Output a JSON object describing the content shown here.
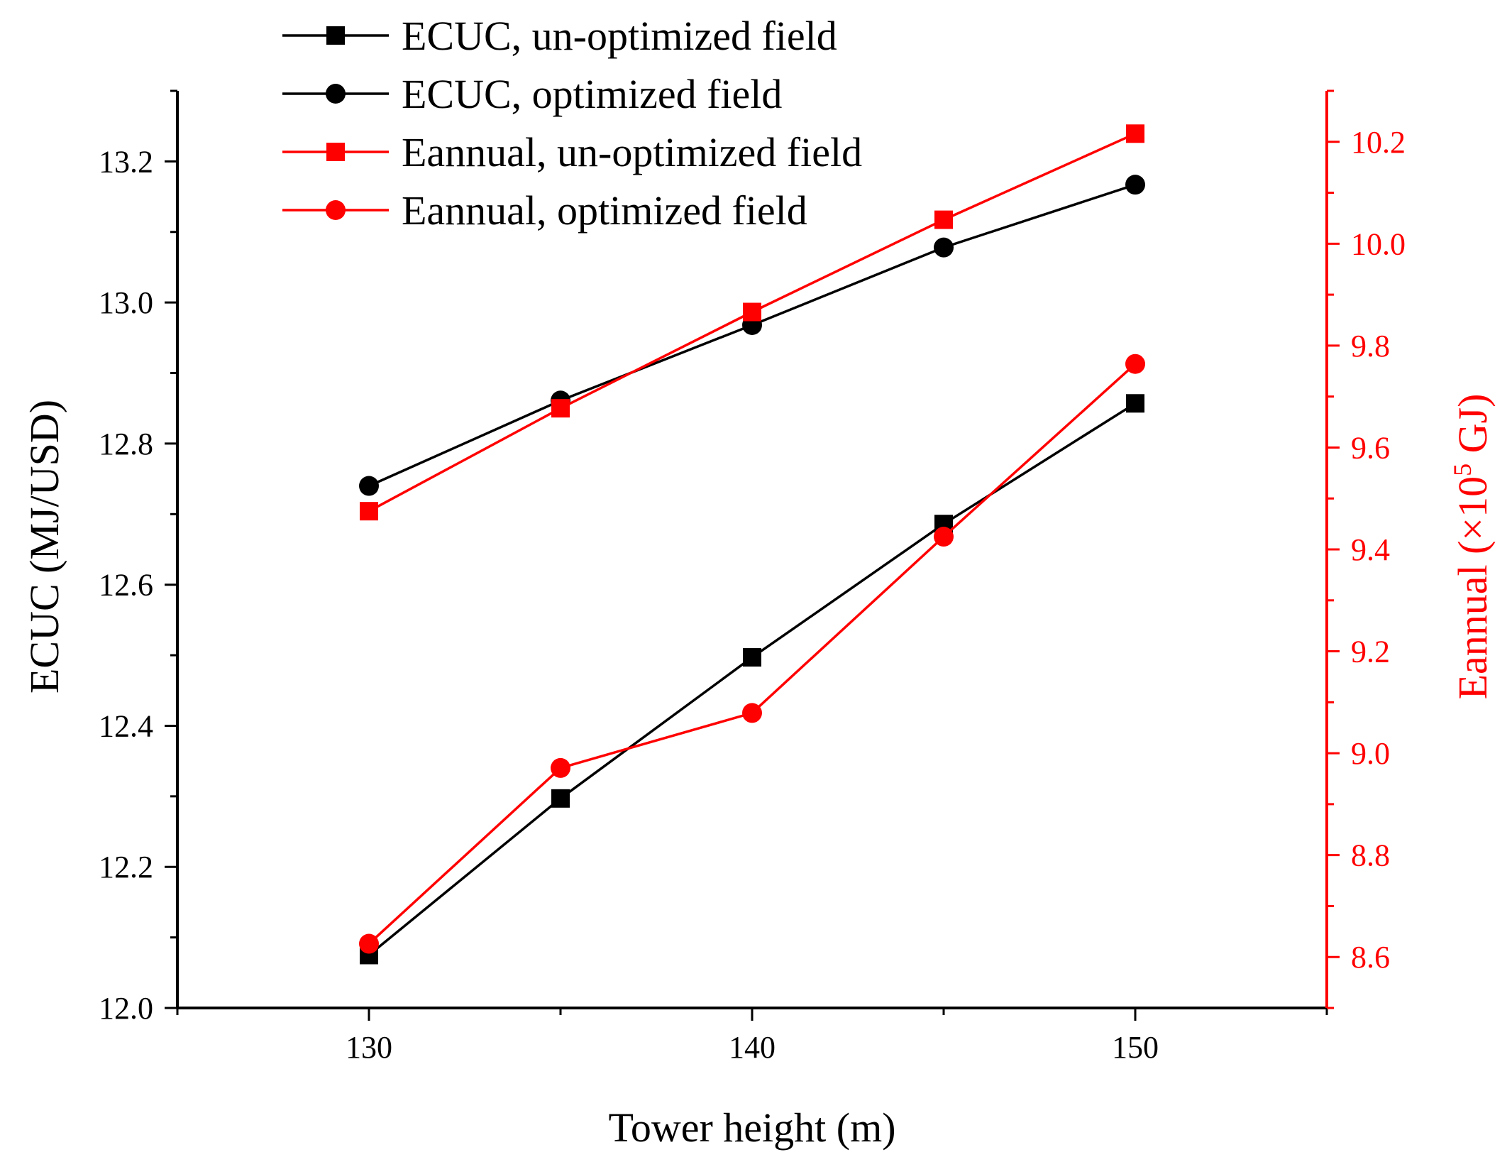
{
  "chart_data": {
    "type": "line",
    "xlabel": "Tower height (m)",
    "ylabel_left": "ECUC (MJ/USD)",
    "ylabel_right_prefix": "Eannual (×10",
    "ylabel_right_exp": "5",
    "ylabel_right_suffix": " GJ)",
    "xlim": [
      125,
      155
    ],
    "ylim_left": [
      12.0,
      13.3
    ],
    "ylim_right": [
      8.5,
      10.3
    ],
    "x_ticks": [
      "130",
      "140",
      "150"
    ],
    "y_left_ticks": [
      "12.0",
      "12.2",
      "12.4",
      "12.6",
      "12.8",
      "13.0",
      "13.2"
    ],
    "y_right_ticks": [
      "8.6",
      "8.8",
      "9.0",
      "9.2",
      "9.4",
      "9.6",
      "9.8",
      "10.0",
      "10.2"
    ],
    "colors": {
      "black": "#000000",
      "red": "#ff0000"
    },
    "x": [
      130,
      135,
      140,
      145,
      150
    ],
    "series": [
      {
        "name": "ECUC, un-optimized field",
        "axis": "left",
        "color": "#000000",
        "marker": "square",
        "values": [
          12.075,
          12.297,
          12.497,
          12.686,
          12.857
        ]
      },
      {
        "name": "ECUC, optimized field",
        "axis": "left",
        "color": "#000000",
        "marker": "circle",
        "values": [
          12.74,
          12.861,
          12.968,
          13.078,
          13.167
        ]
      },
      {
        "name": "Eannual, un-optimized field",
        "axis": "right",
        "color": "#ff0000",
        "marker": "square",
        "values": [
          9.475,
          9.677,
          9.866,
          10.047,
          10.216
        ]
      },
      {
        "name": "Eannual, optimized field",
        "axis": "right",
        "color": "#ff0000",
        "marker": "circle",
        "values": [
          8.626,
          8.971,
          9.079,
          9.425,
          9.764
        ]
      }
    ]
  }
}
